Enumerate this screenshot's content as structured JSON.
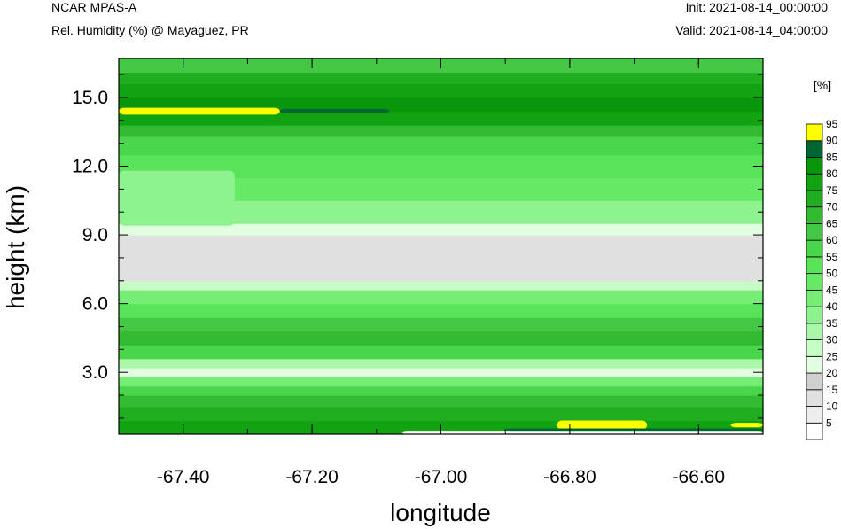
{
  "header": {
    "model": "NCAR MPAS-A",
    "field": "Rel. Humidity (%) @ Mayaguez, PR",
    "init": "Init: 2021-08-14_00:00:00",
    "valid": "Valid: 2021-08-14_04:00:00"
  },
  "chart_data": {
    "type": "heatmap",
    "title": "Rel. Humidity (%) @ Mayaguez, PR",
    "xlabel": "longitude",
    "ylabel": "height (km)",
    "xlim": [
      -67.5,
      -66.5
    ],
    "ylim": [
      0.3,
      16.7
    ],
    "x_ticks": [
      -67.4,
      -67.2,
      -67.0,
      -66.8,
      -66.6
    ],
    "x_tick_labels": [
      "-67.40",
      "-67.20",
      "-67.00",
      "-66.80",
      "-66.60"
    ],
    "y_ticks": [
      3.0,
      6.0,
      9.0,
      12.0,
      15.0
    ],
    "y_tick_labels": [
      "3.0",
      "6.0",
      "9.0",
      "12.0",
      "15.0"
    ],
    "grid": false,
    "colorbar": {
      "unit": "[%]",
      "levels": [
        5,
        10,
        15,
        20,
        25,
        30,
        35,
        40,
        45,
        50,
        55,
        60,
        65,
        70,
        75,
        80,
        85,
        90,
        95
      ],
      "level_labels": [
        "5",
        "10",
        "15",
        "20",
        "25",
        "30",
        "35",
        "40",
        "45",
        "50",
        "55",
        "60",
        "65",
        "70",
        "75",
        "80",
        "85",
        "90",
        "95"
      ],
      "colors": [
        "#ffffff",
        "#ededed",
        "#e0e0e0",
        "#d0d0d0",
        "#e0ffe0",
        "#c6fcc6",
        "#aaf7aa",
        "#8ef28e",
        "#76ee76",
        "#66ea66",
        "#58e358",
        "#4ad64a",
        "#44c744",
        "#32bb32",
        "#20ad20",
        "#11a311",
        "#0a960a",
        "#006633",
        "#ffff00"
      ]
    },
    "bands": [
      {
        "z": 0.3,
        "rh": 82
      },
      {
        "z": 0.9,
        "rh": 78
      },
      {
        "z": 1.5,
        "rh": 72
      },
      {
        "z": 2.0,
        "rh": 60
      },
      {
        "z": 2.4,
        "rh": 45
      },
      {
        "z": 2.8,
        "rh": 25
      },
      {
        "z": 3.2,
        "rh": 35
      },
      {
        "z": 3.6,
        "rh": 60
      },
      {
        "z": 4.2,
        "rh": 72
      },
      {
        "z": 4.8,
        "rh": 66
      },
      {
        "z": 5.4,
        "rh": 55
      },
      {
        "z": 6.0,
        "rh": 45
      },
      {
        "z": 6.6,
        "rh": 30
      },
      {
        "z": 7.0,
        "rh": 17
      },
      {
        "z": 8.0,
        "rh": 15
      },
      {
        "z": 8.6,
        "rh": 18
      },
      {
        "z": 9.0,
        "rh": 28
      },
      {
        "z": 9.5,
        "rh": 40
      },
      {
        "z": 10.5,
        "rh": 50
      },
      {
        "z": 11.5,
        "rh": 55
      },
      {
        "z": 12.5,
        "rh": 60
      },
      {
        "z": 13.3,
        "rh": 70
      },
      {
        "z": 13.8,
        "rh": 80
      },
      {
        "z": 14.4,
        "rh": 88
      },
      {
        "z": 15.0,
        "rh": 82
      },
      {
        "z": 15.6,
        "rh": 75
      },
      {
        "z": 16.1,
        "rh": 66
      },
      {
        "z": 16.7,
        "rh": 60
      }
    ],
    "patches": [
      {
        "lon": [
          -67.5,
          -67.25
        ],
        "z": [
          14.25,
          14.55
        ],
        "rh": 96
      },
      {
        "lon": [
          -67.25,
          -67.08
        ],
        "z": [
          14.3,
          14.5
        ],
        "rh": 91
      },
      {
        "lon": [
          -67.5,
          -67.32
        ],
        "z": [
          9.4,
          11.8
        ],
        "rh": 40
      },
      {
        "lon": [
          -66.82,
          -66.68
        ],
        "z": [
          0.5,
          0.9
        ],
        "rh": 97
      },
      {
        "lon": [
          -66.55,
          -66.5
        ],
        "z": [
          0.6,
          0.8
        ],
        "rh": 96
      },
      {
        "lon": [
          -67.06,
          -66.5
        ],
        "z": [
          0.3,
          0.45
        ],
        "rh": 5
      },
      {
        "lon": [
          -66.9,
          -66.5
        ],
        "z": [
          0.45,
          0.55
        ],
        "rh": 91
      }
    ]
  }
}
